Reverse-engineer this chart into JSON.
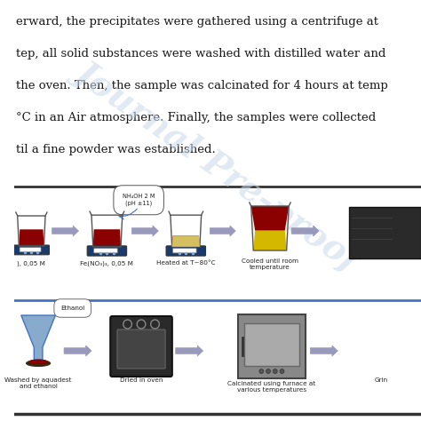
{
  "bg_color": "#ffffff",
  "text_color": "#1a1a1a",
  "watermark_color": "#c8d8e8",
  "watermark_text": "Journal Pre-proof",
  "paragraph_lines": [
    "erward, the precipitates were gathered using a centrifuge at",
    "tep, all solid substances were washed with distilled water and",
    "the oven. Then, the sample was calcinated for 4 hours at temp",
    "°C in an Air atmosphere. Finally, the samples were collected",
    "til a fine powder was established."
  ],
  "row1_labels": [
    "), 0,05 M",
    "Fe(NO₃)₃, 0,05 M",
    "Heated at T~80°C",
    "Cooled until room\ntemperature"
  ],
  "row1_annotation": "NH₄OH 2 M\n(pH ±11)",
  "row2_labels": [
    "Washed by aquadest\nand ethanol",
    "Dried in oven",
    "Calcinated using furnace at\nvarious temperatures",
    "Grin"
  ],
  "row2_annotation": "Ethanol",
  "separator_color": "#333333",
  "blue_line_color": "#4472c4",
  "arrow_color": "#9999bb",
  "beaker_dark": "#8b0000",
  "beaker_yellow": "#d4b800",
  "scale_color": "#1a3a6a",
  "oven_color": "#2a2a2a",
  "furnace_color": "#888888",
  "funnel_color": "#88aacc"
}
